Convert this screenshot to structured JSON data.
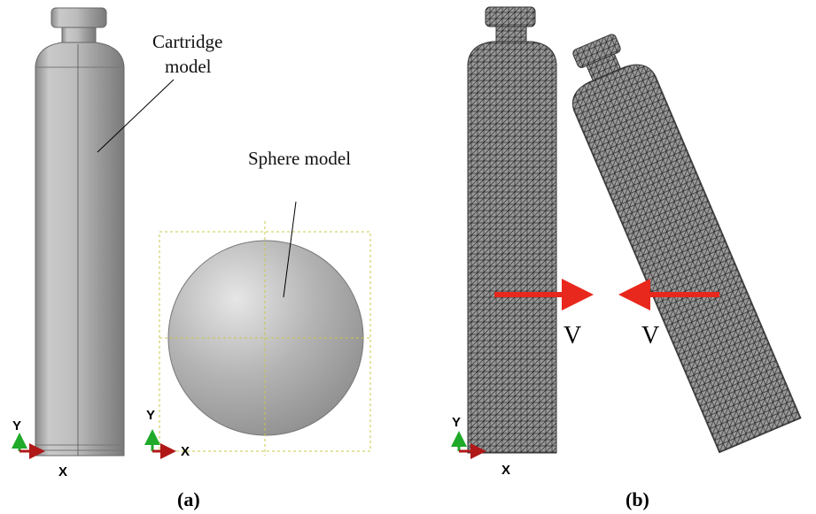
{
  "panel_a": {
    "label": "(a)",
    "cartridge_label": [
      "Cartridge",
      "model"
    ],
    "sphere_label": "Sphere model",
    "triads": [
      {
        "y": "Y",
        "x": "X"
      },
      {
        "y": "Y",
        "x": "X"
      }
    ]
  },
  "panel_b": {
    "label": "(b)",
    "velocity_labels": [
      "V",
      "V"
    ],
    "triad": {
      "y": "Y",
      "x": "X"
    }
  }
}
